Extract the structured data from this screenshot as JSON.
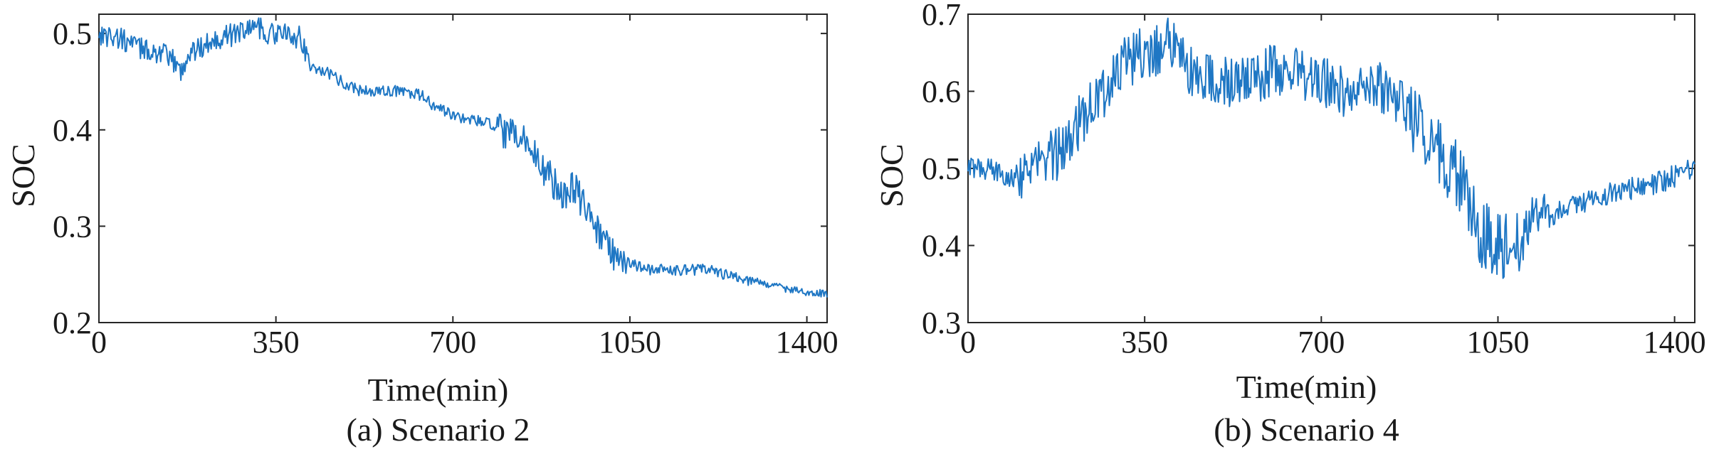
{
  "chart_data": [
    {
      "type": "line",
      "caption": "(a) Scenario 2",
      "xlabel": "Time(min)",
      "ylabel": "SOC",
      "xlim": [
        0,
        1440
      ],
      "ylim": [
        0.2,
        0.52
      ],
      "xticks": [
        0,
        350,
        700,
        1050,
        1400
      ],
      "xtick_labels": [
        "0",
        "350",
        "700",
        "1050",
        "1400"
      ],
      "yticks": [
        0.2,
        0.3,
        0.4,
        0.5
      ],
      "ytick_labels": [
        "0.2",
        "0.3",
        "0.4",
        "0.5"
      ],
      "grid": false,
      "color": "#1f77c4",
      "series": [
        {
          "x": [
            0,
            40,
            80,
            120,
            150,
            160,
            180,
            200,
            230,
            260,
            290,
            310,
            330,
            350,
            380,
            400,
            420,
            450,
            480,
            520,
            560,
            600,
            640,
            660,
            700,
            740,
            780,
            800,
            840,
            860,
            880,
            900,
            920,
            940,
            960,
            980,
            1000,
            1020,
            1040,
            1060,
            1080,
            1120,
            1160,
            1200,
            1240,
            1280,
            1320,
            1360,
            1400,
            1440
          ],
          "y": [
            0.5,
            0.495,
            0.485,
            0.48,
            0.47,
            0.46,
            0.48,
            0.485,
            0.495,
            0.498,
            0.505,
            0.51,
            0.5,
            0.5,
            0.498,
            0.495,
            0.465,
            0.46,
            0.45,
            0.44,
            0.44,
            0.44,
            0.435,
            0.425,
            0.415,
            0.41,
            0.405,
            0.395,
            0.39,
            0.375,
            0.36,
            0.345,
            0.335,
            0.34,
            0.32,
            0.3,
            0.285,
            0.27,
            0.265,
            0.26,
            0.255,
            0.255,
            0.255,
            0.255,
            0.25,
            0.245,
            0.24,
            0.235,
            0.232,
            0.23
          ]
        }
      ]
    },
    {
      "type": "line",
      "caption": "(b) Scenario 4",
      "xlabel": "Time(min)",
      "ylabel": "SOC",
      "xlim": [
        0,
        1440
      ],
      "ylim": [
        0.3,
        0.7
      ],
      "xticks": [
        0,
        350,
        700,
        1050,
        1400
      ],
      "xtick_labels": [
        "0",
        "350",
        "700",
        "1050",
        "1400"
      ],
      "yticks": [
        0.3,
        0.4,
        0.5,
        0.6,
        0.7
      ],
      "ytick_labels": [
        "0.3",
        "0.4",
        "0.5",
        "0.6",
        "0.7"
      ],
      "grid": false,
      "color": "#1f77c4",
      "series": [
        {
          "x": [
            0,
            30,
            60,
            90,
            120,
            150,
            180,
            210,
            240,
            270,
            300,
            330,
            360,
            390,
            410,
            430,
            460,
            500,
            540,
            580,
            620,
            660,
            700,
            740,
            780,
            810,
            840,
            870,
            900,
            930,
            960,
            980,
            1000,
            1020,
            1040,
            1060,
            1080,
            1100,
            1120,
            1160,
            1200,
            1240,
            1280,
            1320,
            1360,
            1400,
            1440
          ],
          "y": [
            0.5,
            0.5,
            0.495,
            0.49,
            0.5,
            0.51,
            0.52,
            0.55,
            0.58,
            0.6,
            0.63,
            0.645,
            0.65,
            0.66,
            0.665,
            0.63,
            0.62,
            0.61,
            0.61,
            0.62,
            0.63,
            0.625,
            0.61,
            0.6,
            0.605,
            0.61,
            0.6,
            0.58,
            0.55,
            0.53,
            0.5,
            0.47,
            0.43,
            0.42,
            0.41,
            0.405,
            0.405,
            0.41,
            0.43,
            0.44,
            0.455,
            0.46,
            0.47,
            0.475,
            0.48,
            0.49,
            0.5
          ]
        }
      ]
    }
  ]
}
